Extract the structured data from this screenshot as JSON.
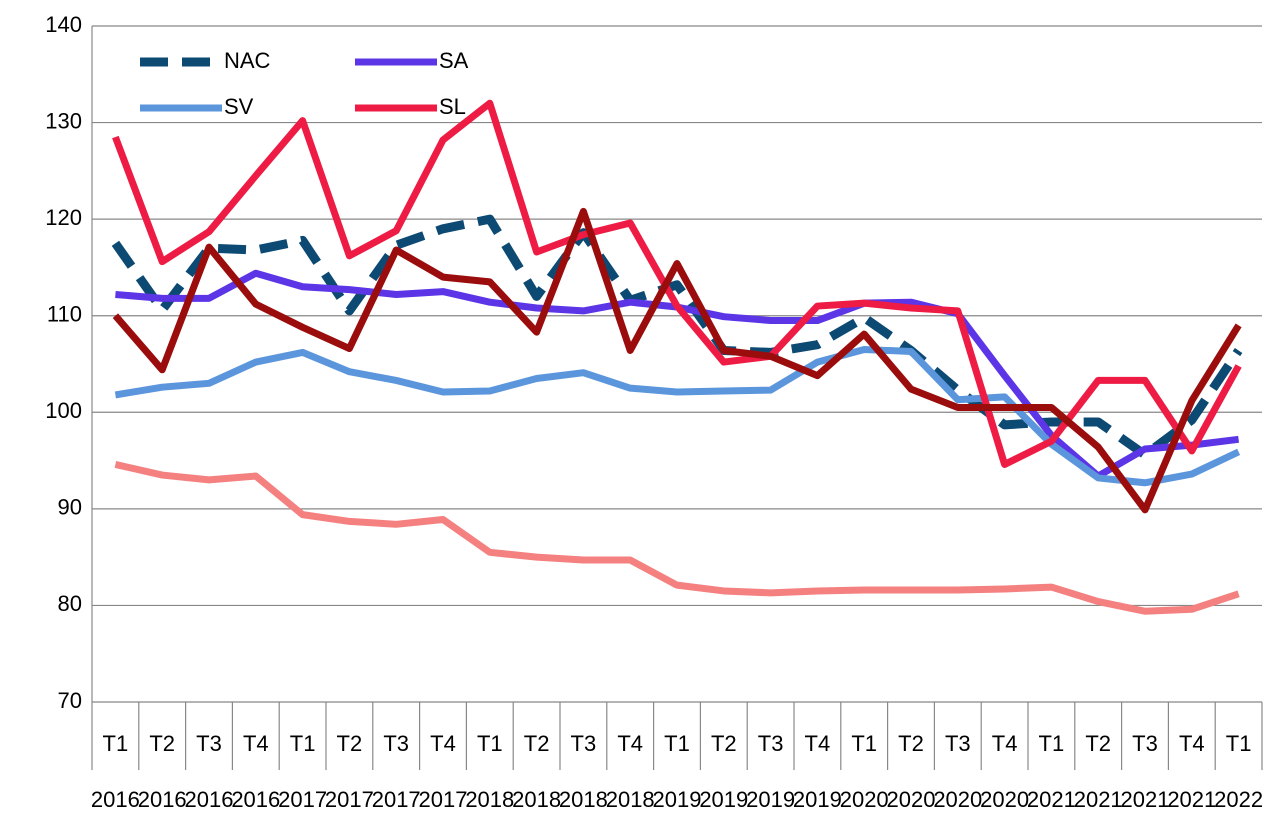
{
  "chart_data": {
    "type": "line",
    "categories": [
      "T1",
      "T2",
      "T3",
      "T4",
      "T1",
      "T2",
      "T3",
      "T4",
      "T1",
      "T2",
      "T3",
      "T4",
      "T1",
      "T2",
      "T3",
      "T4",
      "T1",
      "T2",
      "T3",
      "T4",
      "T1",
      "T2",
      "T3",
      "T4",
      "T1"
    ],
    "years": [
      "2016",
      "2016",
      "2016",
      "2016",
      "2017",
      "2017",
      "2017",
      "2017",
      "2018",
      "2018",
      "2018",
      "2018",
      "2019",
      "2019",
      "2019",
      "2019",
      "2020",
      "2020",
      "2020",
      "2020",
      "2021",
      "2021",
      "2021",
      "2021",
      "2022"
    ],
    "ylim": [
      70,
      140
    ],
    "yticks": [
      70,
      80,
      90,
      100,
      110,
      120,
      130,
      140
    ],
    "grid": true,
    "legend": "top-left",
    "series": [
      {
        "name": "NAC",
        "color": "#0d4a73",
        "dash": true,
        "values": [
          117.5,
          110.6,
          117,
          116.8,
          117.8,
          110.5,
          117.3,
          119,
          120,
          112,
          118.6,
          111.6,
          113.2,
          106.4,
          106.2,
          107,
          109.8,
          106.4,
          102.3,
          98.7,
          99,
          99,
          95.6,
          99.2,
          106.4
        ]
      },
      {
        "name": "SA",
        "color": "#5b35e6",
        "values": [
          112.2,
          111.8,
          111.8,
          114.4,
          113,
          112.7,
          112.2,
          112.5,
          111.4,
          110.8,
          110.5,
          111.4,
          110.9,
          109.9,
          109.5,
          109.5,
          111.3,
          111.4,
          110.2,
          103.8,
          97.6,
          93.4,
          96.2,
          96.6,
          97.2
        ]
      },
      {
        "name": "SV",
        "color": "#5b96dd",
        "values": [
          101.8,
          102.6,
          103,
          105.2,
          106.2,
          104.2,
          103.3,
          102.1,
          102.2,
          103.5,
          104.1,
          102.5,
          102.1,
          102.2,
          102.3,
          105.2,
          106.5,
          106.3,
          101.3,
          101.6,
          96.7,
          93.2,
          92.7,
          93.6,
          95.9
        ]
      },
      {
        "name": "SL",
        "color": "#ee1c44",
        "values": [
          128.5,
          115.6,
          118.7,
          124.5,
          130.2,
          116.2,
          118.8,
          128.2,
          132,
          116.6,
          118.4,
          119.6,
          111,
          105.2,
          105.8,
          111,
          111.3,
          110.8,
          110.5,
          94.6,
          97,
          103.3,
          103.3,
          96,
          104.8
        ]
      },
      {
        "color": "#9b0d0d",
        "values": [
          110,
          104.4,
          117.1,
          111.2,
          108.8,
          106.6,
          116.8,
          114,
          113.5,
          108.3,
          120.8,
          106.4,
          115.4,
          106.4,
          105.8,
          103.8,
          108.1,
          102.4,
          100.5,
          100.5,
          100.5,
          96.4,
          89.9,
          101.2,
          109
        ]
      },
      {
        "color": "#f58080",
        "values": [
          94.6,
          93.5,
          93,
          93.4,
          89.4,
          88.7,
          88.4,
          88.9,
          85.5,
          85,
          84.7,
          84.7,
          82.1,
          81.5,
          81.3,
          81.5,
          81.6,
          81.6,
          81.6,
          81.7,
          81.9,
          80.4,
          79.4,
          79.6,
          81.2
        ]
      }
    ]
  }
}
